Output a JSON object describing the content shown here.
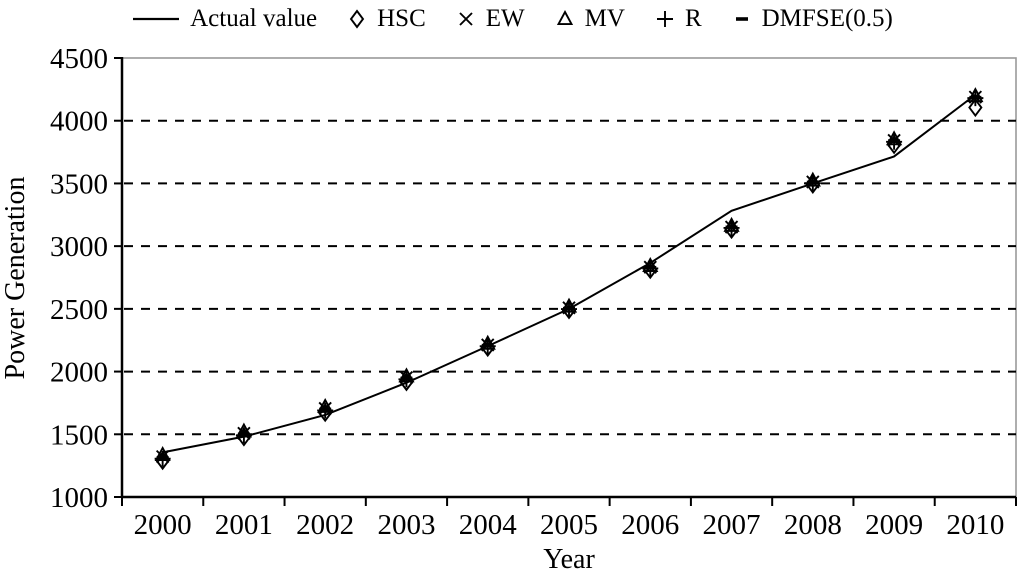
{
  "chart_data": {
    "type": "line",
    "title": "",
    "xlabel": "Year",
    "ylabel": "Power Generation",
    "x": [
      "2000",
      "2001",
      "2002",
      "2003",
      "2004",
      "2005",
      "2006",
      "2007",
      "2008",
      "2009",
      "2010"
    ],
    "ylim": [
      1000,
      4500
    ],
    "ytick_step": 500,
    "ytick_labels": [
      "1000",
      "1500",
      "2000",
      "2500",
      "3000",
      "3500",
      "4000",
      "4500"
    ],
    "grid": "horizontal-dashed",
    "legend_position": "top",
    "series": [
      {
        "name": "Actual value",
        "type": "line",
        "marker": "line",
        "values": [
          1356,
          1481,
          1654,
          1911,
          2203,
          2500,
          2866,
          3282,
          3500,
          3715,
          4207
        ]
      },
      {
        "name": "HSC",
        "type": "scatter",
        "marker": "diamond",
        "values": [
          1290,
          1478,
          1672,
          1918,
          2192,
          2492,
          2812,
          3132,
          3492,
          3808,
          4105
        ]
      },
      {
        "name": "EW",
        "type": "scatter",
        "marker": "x",
        "values": [
          1322,
          1508,
          1706,
          1952,
          2212,
          2508,
          2832,
          3152,
          3512,
          3843,
          4188
        ]
      },
      {
        "name": "MV",
        "type": "scatter",
        "marker": "triangle",
        "values": [
          1335,
          1522,
          1718,
          1962,
          2222,
          2518,
          2842,
          3162,
          3522,
          3852,
          4196
        ]
      },
      {
        "name": "R",
        "type": "scatter",
        "marker": "plus",
        "values": [
          1305,
          1492,
          1690,
          1938,
          2202,
          2498,
          2822,
          3145,
          3502,
          3832,
          4180
        ]
      },
      {
        "name": "DMFSE(0.5)",
        "type": "scatter",
        "marker": "dash",
        "values": [
          1312,
          1500,
          1698,
          1945,
          2207,
          2502,
          2828,
          3150,
          3508,
          3838,
          4184
        ]
      }
    ]
  },
  "colors": {
    "background": "#ffffff",
    "text": "#000000",
    "line": "#000000",
    "marker": "#000000",
    "grid": "#000000",
    "axis": "#000000",
    "border": "#999999"
  }
}
